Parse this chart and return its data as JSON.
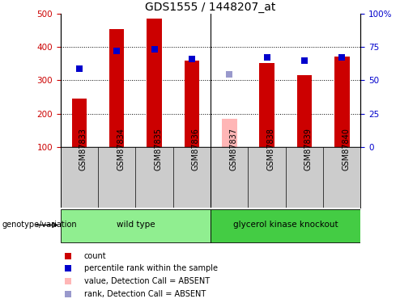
{
  "title": "GDS1555 / 1448207_at",
  "samples": [
    "GSM87833",
    "GSM87834",
    "GSM87835",
    "GSM87836",
    "GSM87837",
    "GSM87838",
    "GSM87839",
    "GSM87840"
  ],
  "counts": [
    245,
    453,
    484,
    358,
    null,
    353,
    315,
    370
  ],
  "counts_absent": [
    null,
    null,
    null,
    null,
    184,
    null,
    null,
    null
  ],
  "ranks": [
    335,
    388,
    392,
    365,
    null,
    370,
    358,
    370
  ],
  "ranks_absent": [
    null,
    null,
    null,
    null,
    318,
    null,
    null,
    null
  ],
  "bar_color": "#cc0000",
  "bar_absent_color": "#ffb6b6",
  "rank_color": "#0000cc",
  "rank_absent_color": "#9999cc",
  "ylim_left": [
    100,
    500
  ],
  "ylim_right": [
    0,
    100
  ],
  "yticks_left": [
    100,
    200,
    300,
    400,
    500
  ],
  "ytick_labels_left": [
    "100",
    "200",
    "300",
    "400",
    "500"
  ],
  "yticks_right": [
    0,
    25,
    50,
    75,
    100
  ],
  "ytick_labels_right": [
    "0",
    "25",
    "50",
    "75",
    "100%"
  ],
  "groups": [
    {
      "label": "wild type",
      "start": 0,
      "end": 3,
      "color": "#90ee90"
    },
    {
      "label": "glycerol kinase knockout",
      "start": 4,
      "end": 7,
      "color": "#44cc44"
    }
  ],
  "genotype_label": "genotype/variation",
  "legend_items": [
    {
      "label": "count",
      "color": "#cc0000"
    },
    {
      "label": "percentile rank within the sample",
      "color": "#0000cc"
    },
    {
      "label": "value, Detection Call = ABSENT",
      "color": "#ffb6b6"
    },
    {
      "label": "rank, Detection Call = ABSENT",
      "color": "#9999cc"
    }
  ],
  "bg_color": "#ffffff",
  "tick_area_color": "#cccccc",
  "title_fontsize": 10,
  "tick_fontsize": 7.5,
  "bar_width": 0.4,
  "rank_marker_size": 40
}
